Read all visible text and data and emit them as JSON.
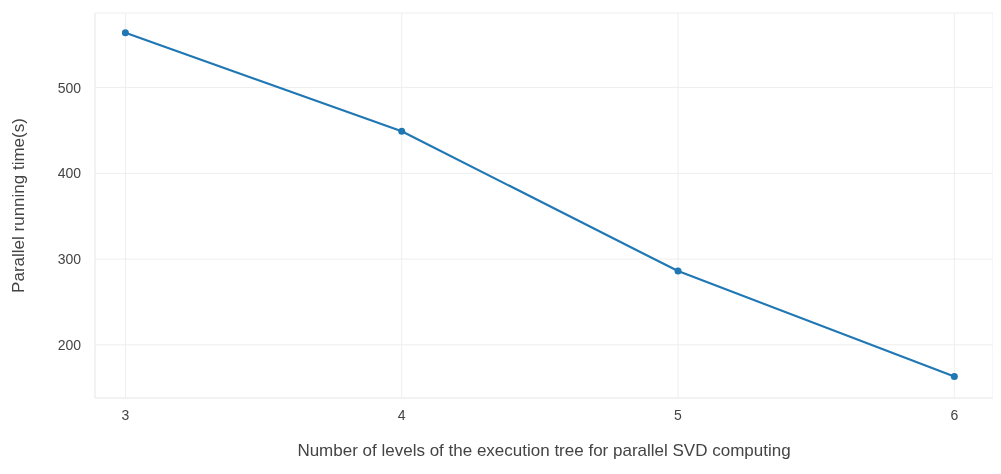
{
  "chart_data": {
    "type": "line",
    "xlabel": "Number of levels of the execution tree for parallel SVD computing",
    "ylabel": "Parallel running time(s)",
    "x": [
      3,
      4,
      5,
      6
    ],
    "series": [
      {
        "color": "#1f77b4",
        "values": [
          564,
          449,
          286,
          163
        ]
      }
    ],
    "xlim": [
      2.89,
      6.14
    ],
    "xticks": [
      3,
      4,
      5,
      6
    ],
    "ylim": [
      138,
      587
    ],
    "yticks": [
      200,
      300,
      400,
      500
    ],
    "grid": true,
    "legend": false,
    "marker": "circle",
    "line_style": "solid"
  }
}
